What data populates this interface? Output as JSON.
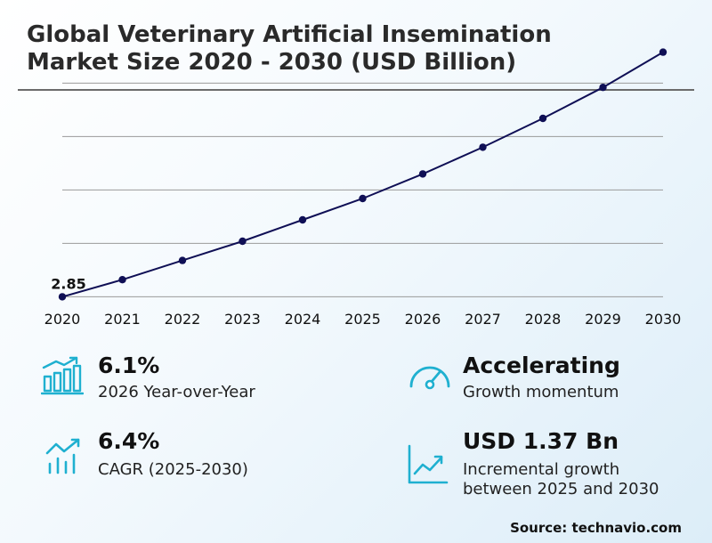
{
  "title_line1": "Global Veterinary Artificial Insemination",
  "title_line2": "Market Size 2020 - 2030 (USD Billion)",
  "chart_data": {
    "type": "line",
    "x": [
      "2020",
      "2021",
      "2022",
      "2023",
      "2024",
      "2025",
      "2026",
      "2027",
      "2028",
      "2029",
      "2030"
    ],
    "series": [
      {
        "values": [
          2.85,
          3.01,
          3.19,
          3.37,
          3.57,
          3.77,
          4.0,
          4.25,
          4.52,
          4.81,
          5.14
        ]
      }
    ],
    "annotations": [
      {
        "x": "2020",
        "text": "2.85"
      }
    ],
    "ylim": [
      2.72,
      4.87
    ],
    "gridlines": [
      2.85,
      3.35,
      3.85,
      4.35,
      4.85
    ],
    "grid": true,
    "line_color": "#0f0f55",
    "title": "",
    "xlabel": "",
    "ylabel": ""
  },
  "stats": {
    "yoy": {
      "value": "6.1%",
      "desc": "2026 Year-over-Year",
      "icon": "bar-chart-growth-icon"
    },
    "cagr": {
      "value": "6.4%",
      "desc": "CAGR (2025-2030)",
      "icon": "trend-bars-icon"
    },
    "momentum": {
      "value": "Accelerating",
      "desc": "Growth momentum",
      "icon": "speedometer-icon"
    },
    "incremental": {
      "value": "USD 1.37 Bn",
      "desc_line1": "Incremental growth",
      "desc_line2": "between 2025 and 2030",
      "icon": "line-chart-up-icon"
    }
  },
  "source": "Source: technavio.com",
  "colors": {
    "accent": "#1fb0d0",
    "line": "#0f0f55",
    "grid": "#9a9a9a"
  }
}
